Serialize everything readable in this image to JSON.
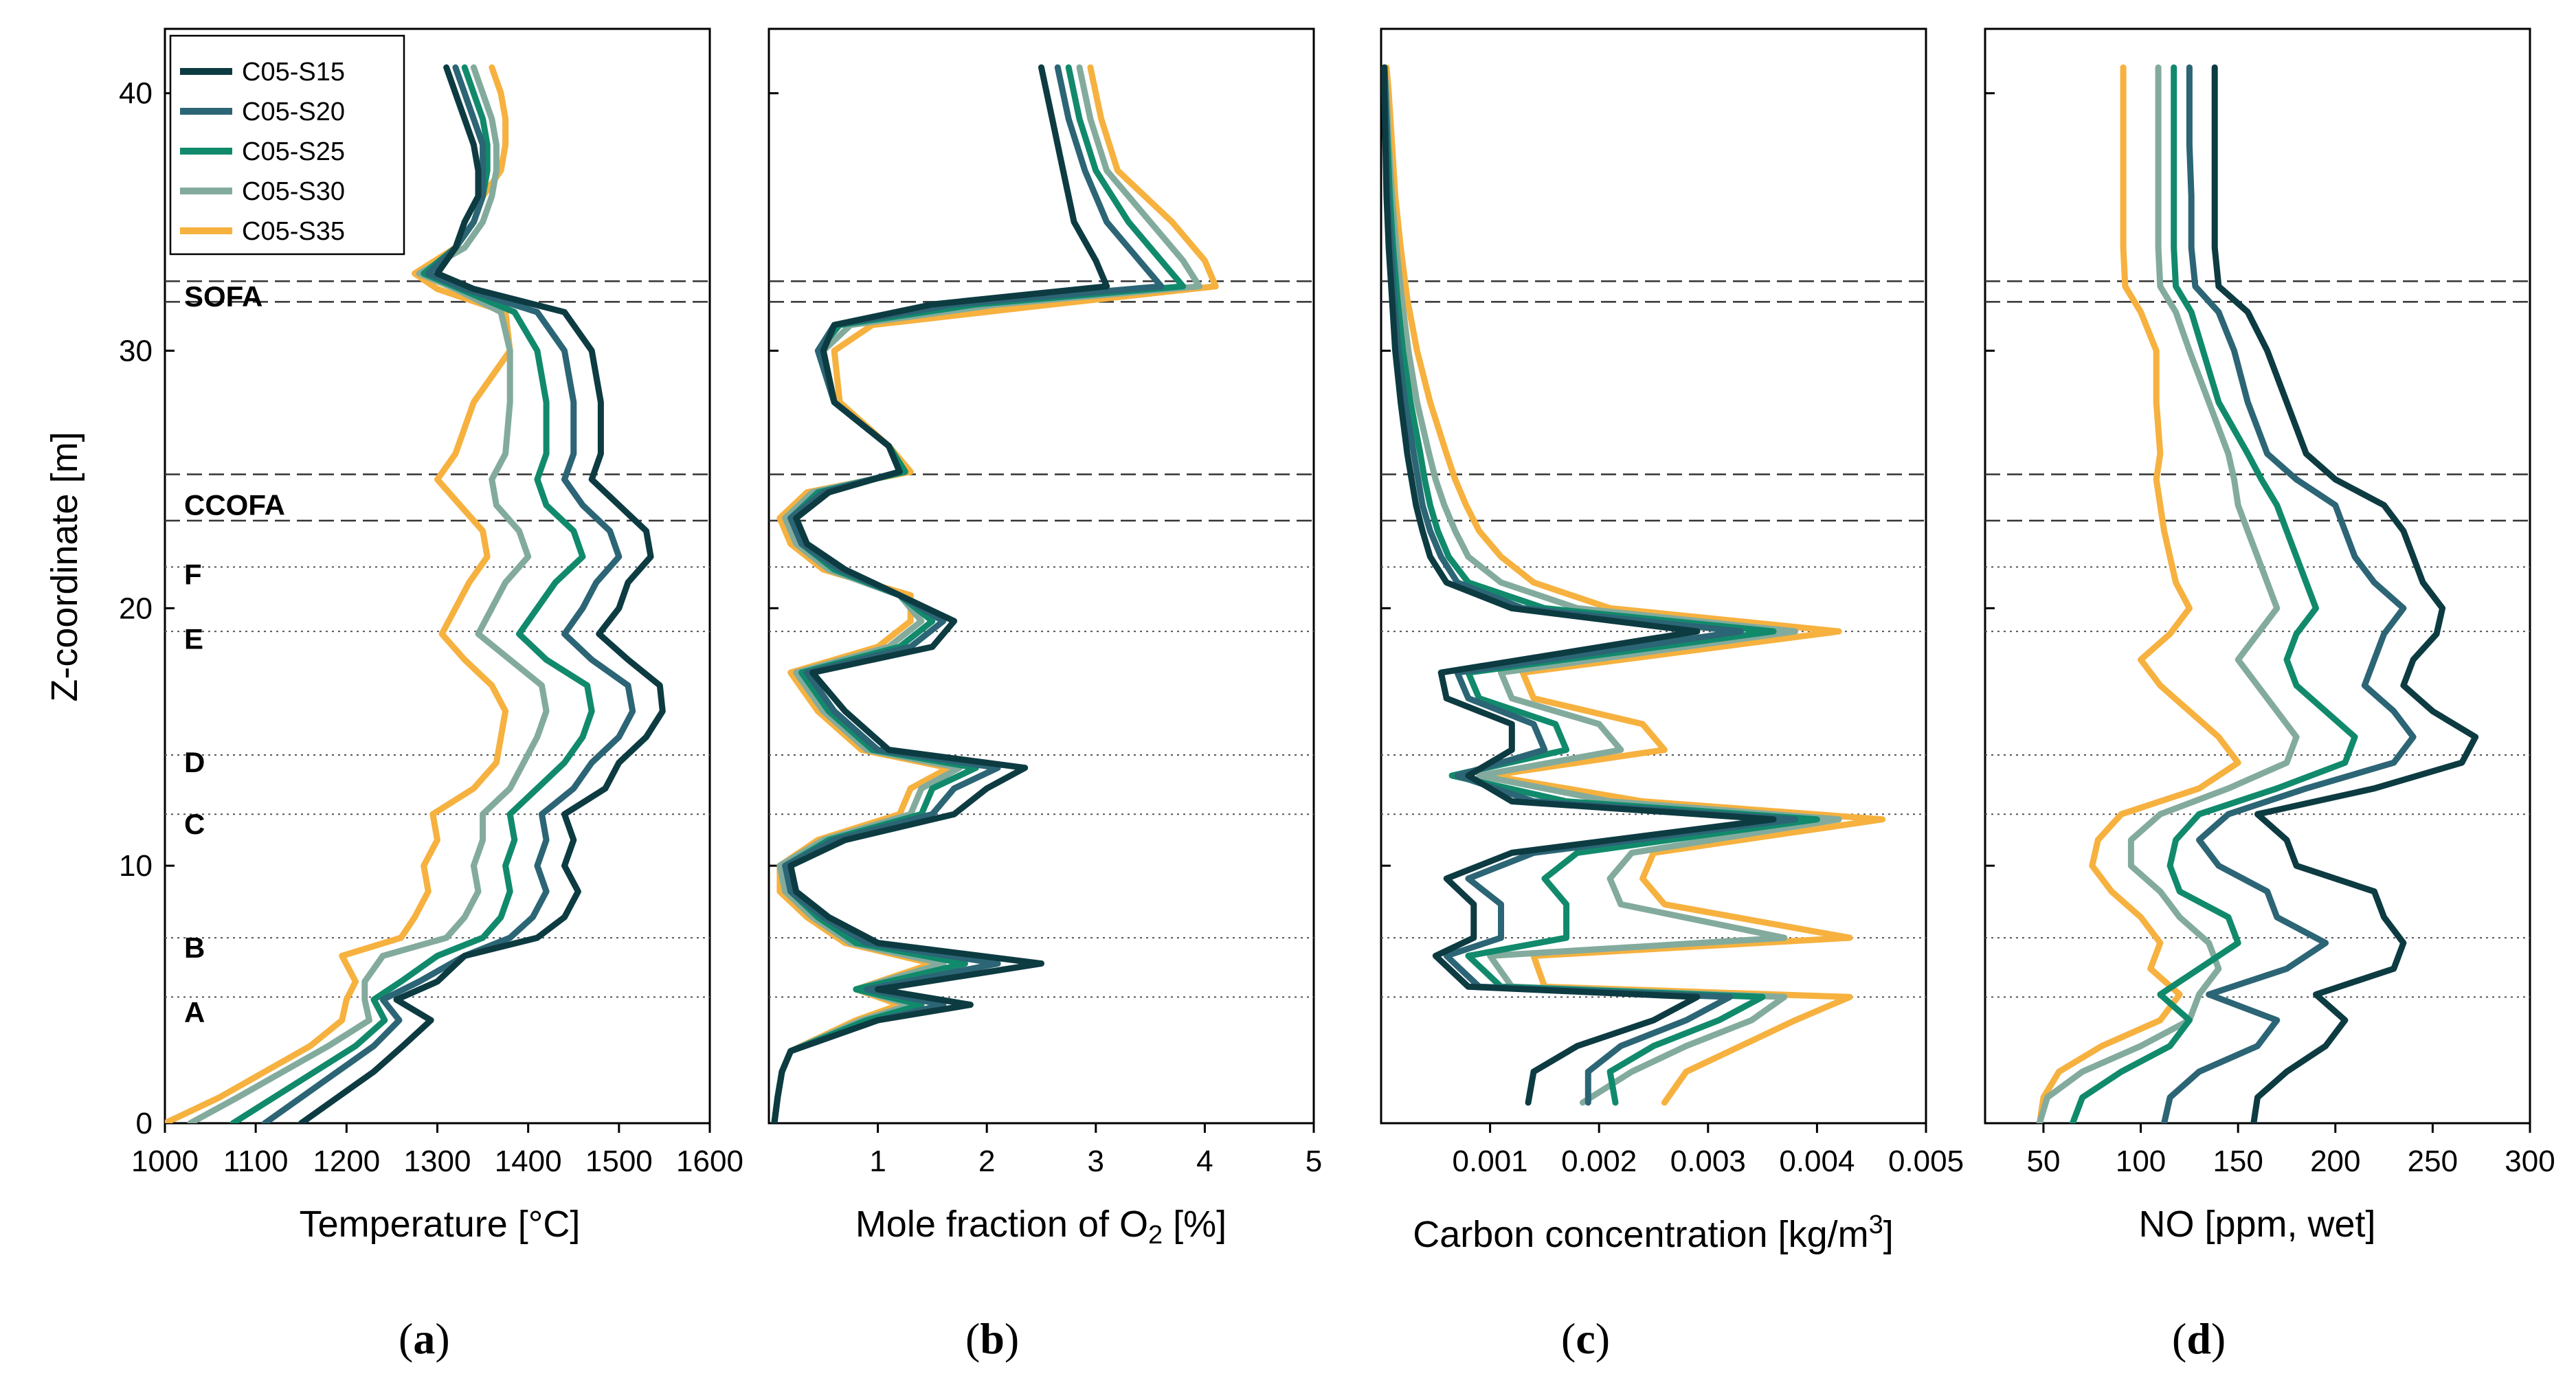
{
  "y_axis": {
    "label": "Z-coordinate [m]",
    "ticks": [
      0,
      10,
      20,
      30,
      40
    ],
    "range": [
      0,
      42.5
    ]
  },
  "region_lines": {
    "dashed": [
      32.7,
      31.9,
      25.2,
      23.4
    ],
    "dotted": [
      21.6,
      19.1,
      14.3,
      12.0,
      7.2,
      4.9
    ]
  },
  "region_labels": [
    {
      "text": "SOFA",
      "z": 32.1
    },
    {
      "text": "CCOFA",
      "z": 24.0
    },
    {
      "text": "F",
      "z": 21.3
    },
    {
      "text": "E",
      "z": 18.8
    },
    {
      "text": "D",
      "z": 14.0
    },
    {
      "text": "C",
      "z": 11.6
    },
    {
      "text": "B",
      "z": 6.8
    },
    {
      "text": "A",
      "z": 4.3
    }
  ],
  "legend": [
    "C05-S15",
    "C05-S20",
    "C05-S25",
    "C05-S30",
    "C05-S35"
  ],
  "series_colors": [
    "#0d3b42",
    "#2c6575",
    "#118a6c",
    "#83ab9d",
    "#f6b13f"
  ],
  "panel_labels": [
    "a",
    "b",
    "c",
    "d"
  ],
  "chart_data": [
    {
      "type": "line",
      "title": "",
      "xlabel": "Temperature [°C]",
      "ylabel": "Z-coordinate [m]",
      "xlim": [
        1000,
        1600
      ],
      "ylim": [
        0,
        42.5
      ],
      "x_ticks": [
        1000,
        1100,
        1200,
        1300,
        1400,
        1500,
        1600
      ],
      "x_tick_labels": [
        "1000",
        "1100",
        "1200",
        "1300",
        "1400",
        "1500",
        "1600"
      ],
      "z": [
        0,
        1,
        2,
        3,
        4,
        4.8,
        5.5,
        6.5,
        7.2,
        8,
        9,
        10,
        11,
        12,
        13,
        14,
        15,
        16,
        17,
        18,
        19,
        20,
        21,
        22,
        23,
        24,
        25,
        26,
        28,
        30,
        31.5,
        32.4,
        33,
        34,
        35,
        36,
        37,
        38,
        39,
        40,
        41
      ],
      "series": [
        {
          "name": "C05-S15",
          "values": [
            1150,
            1190,
            1230,
            1262,
            1293,
            1255,
            1300,
            1330,
            1410,
            1440,
            1455,
            1440,
            1450,
            1440,
            1485,
            1500,
            1530,
            1548,
            1545,
            1510,
            1478,
            1500,
            1510,
            1535,
            1530,
            1500,
            1470,
            1480,
            1480,
            1470,
            1440,
            1340,
            1300,
            1320,
            1330,
            1345,
            1345,
            1340,
            1330,
            1320,
            1310
          ]
        },
        {
          "name": "C05-S20",
          "values": [
            1110,
            1150,
            1190,
            1230,
            1258,
            1240,
            1280,
            1330,
            1380,
            1405,
            1420,
            1410,
            1420,
            1415,
            1450,
            1470,
            1500,
            1515,
            1510,
            1470,
            1440,
            1460,
            1475,
            1500,
            1490,
            1460,
            1440,
            1450,
            1450,
            1440,
            1410,
            1330,
            1290,
            1320,
            1340,
            1350,
            1350,
            1350,
            1340,
            1330,
            1320
          ]
        },
        {
          "name": "C05-S25",
          "values": [
            1075,
            1120,
            1165,
            1210,
            1242,
            1230,
            1260,
            1300,
            1350,
            1370,
            1380,
            1375,
            1385,
            1380,
            1410,
            1440,
            1460,
            1470,
            1465,
            1420,
            1390,
            1410,
            1430,
            1460,
            1450,
            1420,
            1410,
            1420,
            1420,
            1410,
            1385,
            1325,
            1285,
            1320,
            1340,
            1350,
            1355,
            1355,
            1350,
            1340,
            1330
          ]
        },
        {
          "name": "C05-S30",
          "values": [
            1028,
            1080,
            1130,
            1180,
            1225,
            1220,
            1220,
            1240,
            1310,
            1330,
            1345,
            1340,
            1350,
            1350,
            1380,
            1395,
            1410,
            1420,
            1415,
            1380,
            1345,
            1360,
            1375,
            1400,
            1390,
            1365,
            1360,
            1375,
            1380,
            1380,
            1370,
            1320,
            1280,
            1330,
            1350,
            1360,
            1365,
            1365,
            1360,
            1350,
            1340
          ]
        },
        {
          "name": "C05-S35",
          "values": [
            1000,
            1060,
            1110,
            1160,
            1195,
            1200,
            1210,
            1195,
            1260,
            1275,
            1290,
            1285,
            1300,
            1295,
            1340,
            1365,
            1370,
            1375,
            1360,
            1330,
            1305,
            1320,
            1335,
            1355,
            1350,
            1325,
            1300,
            1320,
            1340,
            1380,
            1375,
            1300,
            1275,
            1320,
            1340,
            1350,
            1370,
            1375,
            1375,
            1370,
            1360
          ]
        }
      ]
    },
    {
      "type": "line",
      "title": "",
      "xlabel": "Mole fraction of O2 [%]",
      "ylabel": "",
      "xlim": [
        0,
        5
      ],
      "ylim": [
        0,
        42.5
      ],
      "x_ticks": [
        1,
        2,
        3,
        4,
        5
      ],
      "x_tick_labels": [
        "1",
        "2",
        "3",
        "4",
        "5"
      ],
      "z": [
        0,
        1,
        2,
        2.8,
        4,
        4.6,
        5.2,
        6.2,
        7,
        8,
        9,
        10,
        11,
        12,
        13,
        13.8,
        14.5,
        16,
        17.5,
        18.5,
        19.5,
        20.5,
        21.5,
        22.5,
        23.5,
        24.5,
        25.3,
        26.3,
        28,
        30,
        31,
        31.8,
        32.5,
        33.5,
        35,
        37,
        39,
        41
      ],
      "series": [
        {
          "name": "C05-S15",
          "values": [
            0.05,
            0.08,
            0.12,
            0.2,
            1.0,
            1.85,
            1.0,
            2.5,
            1.0,
            0.55,
            0.25,
            0.2,
            0.7,
            1.7,
            2.0,
            2.35,
            1.1,
            0.7,
            0.4,
            1.5,
            1.7,
            1.2,
            0.7,
            0.35,
            0.25,
            0.55,
            1.2,
            1.1,
            0.6,
            0.5,
            0.6,
            1.5,
            3.1,
            3.0,
            2.8,
            2.7,
            2.6,
            2.5
          ]
        },
        {
          "name": "C05-S20",
          "values": [
            0.05,
            0.08,
            0.12,
            0.2,
            1.0,
            1.6,
            0.9,
            2.1,
            0.9,
            0.5,
            0.2,
            0.15,
            0.6,
            1.5,
            1.7,
            2.1,
            1.0,
            0.6,
            0.35,
            1.3,
            1.6,
            1.2,
            0.65,
            0.3,
            0.2,
            0.5,
            1.2,
            1.1,
            0.6,
            0.45,
            0.6,
            1.7,
            3.6,
            3.4,
            3.1,
            2.9,
            2.75,
            2.65
          ]
        },
        {
          "name": "C05-S25",
          "values": [
            0.05,
            0.08,
            0.12,
            0.2,
            0.9,
            1.4,
            0.8,
            1.8,
            0.8,
            0.45,
            0.2,
            0.15,
            0.55,
            1.4,
            1.5,
            1.9,
            0.95,
            0.55,
            0.3,
            1.2,
            1.5,
            1.2,
            0.6,
            0.3,
            0.2,
            0.45,
            1.25,
            1.1,
            0.6,
            0.45,
            0.65,
            1.9,
            3.8,
            3.6,
            3.3,
            3.0,
            2.85,
            2.75
          ]
        },
        {
          "name": "C05-S30",
          "values": [
            0.05,
            0.08,
            0.12,
            0.2,
            0.85,
            1.3,
            0.8,
            1.6,
            0.75,
            0.4,
            0.15,
            0.1,
            0.5,
            1.3,
            1.4,
            1.75,
            0.9,
            0.5,
            0.25,
            1.1,
            1.4,
            1.2,
            0.55,
            0.25,
            0.15,
            0.4,
            1.25,
            1.1,
            0.6,
            0.5,
            0.75,
            2.1,
            3.95,
            3.8,
            3.5,
            3.1,
            2.95,
            2.85
          ]
        },
        {
          "name": "C05-S35",
          "values": [
            0.05,
            0.08,
            0.12,
            0.2,
            0.8,
            1.2,
            0.8,
            1.5,
            0.7,
            0.35,
            0.1,
            0.1,
            0.45,
            1.2,
            1.3,
            1.65,
            0.85,
            0.45,
            0.2,
            1.0,
            1.3,
            1.3,
            0.5,
            0.2,
            0.1,
            0.35,
            1.3,
            1.1,
            0.65,
            0.6,
            0.95,
            2.6,
            4.1,
            4.0,
            3.7,
            3.2,
            3.05,
            2.95
          ]
        }
      ]
    },
    {
      "type": "line",
      "title": "",
      "xlabel": "Carbon concentration [kg/m3]",
      "ylabel": "",
      "xlim": [
        0,
        0.005
      ],
      "ylim": [
        0,
        42.5
      ],
      "x_ticks": [
        0.001,
        0.002,
        0.003,
        0.004,
        0.005
      ],
      "x_tick_labels": [
        "0.001",
        "0.002",
        "0.003",
        "0.004",
        "0.005"
      ],
      "z": [
        0.8,
        2,
        3,
        4,
        4.9,
        5.3,
        6.5,
        7.2,
        8.5,
        9.5,
        10.5,
        11.8,
        12.5,
        13.5,
        14.5,
        15.5,
        16.5,
        17.5,
        19.1,
        20,
        21,
        22,
        23,
        24,
        25,
        26,
        28,
        30,
        32,
        34,
        36,
        38,
        40,
        41
      ],
      "series": [
        {
          "name": "C05-S15",
          "values": [
            0.00135,
            0.0014,
            0.0018,
            0.0025,
            0.0029,
            0.0008,
            0.0005,
            0.00085,
            0.00085,
            0.0006,
            0.0012,
            0.0036,
            0.0012,
            0.0008,
            0.0012,
            0.0012,
            0.0006,
            0.00055,
            0.0029,
            0.0012,
            0.0006,
            0.00045,
            0.00038,
            0.00032,
            0.00028,
            0.00024,
            0.00018,
            0.00013,
            0.0001,
            7e-05,
            5e-05,
            4e-05,
            3e-05,
            3e-05
          ]
        },
        {
          "name": "C05-S20",
          "values": [
            0.0019,
            0.0019,
            0.0022,
            0.0028,
            0.0032,
            0.0009,
            0.0006,
            0.0011,
            0.0011,
            0.0008,
            0.0014,
            0.0038,
            0.0014,
            0.0007,
            0.0015,
            0.0014,
            0.0008,
            0.0007,
            0.0033,
            0.0013,
            0.0007,
            0.00055,
            0.00045,
            0.00038,
            0.00034,
            0.0003,
            0.00022,
            0.00016,
            0.00012,
            9e-05,
            6e-05,
            5e-05,
            4e-05,
            3e-05
          ]
        },
        {
          "name": "C05-S25",
          "values": [
            0.00215,
            0.0021,
            0.0025,
            0.0031,
            0.0035,
            0.0011,
            0.0008,
            0.0017,
            0.0017,
            0.0015,
            0.0018,
            0.004,
            0.0017,
            0.00065,
            0.0017,
            0.0016,
            0.0009,
            0.0008,
            0.0036,
            0.0015,
            0.0008,
            0.00062,
            0.00052,
            0.00045,
            0.0004,
            0.00036,
            0.00027,
            0.0002,
            0.00015,
            0.00011,
            8e-05,
            6e-05,
            4e-05,
            3e-05
          ]
        },
        {
          "name": "C05-S30",
          "values": [
            0.00185,
            0.0023,
            0.0028,
            0.0034,
            0.0037,
            0.0012,
            0.001,
            0.0037,
            0.0022,
            0.0021,
            0.0023,
            0.0042,
            0.0021,
            0.0009,
            0.0022,
            0.002,
            0.0012,
            0.0011,
            0.0038,
            0.0018,
            0.0011,
            0.0008,
            0.00068,
            0.00058,
            0.0005,
            0.00044,
            0.00033,
            0.00025,
            0.00019,
            0.00014,
            0.0001,
            7e-05,
            5e-05,
            3e-05
          ]
        },
        {
          "name": "C05-S35",
          "values": [
            0.0026,
            0.0028,
            0.0033,
            0.0038,
            0.0043,
            0.0015,
            0.0014,
            0.0043,
            0.0026,
            0.0024,
            0.0025,
            0.0046,
            0.0024,
            0.001,
            0.0026,
            0.0024,
            0.0014,
            0.0013,
            0.0042,
            0.0021,
            0.0014,
            0.0011,
            0.0009,
            0.00078,
            0.00068,
            0.0006,
            0.00045,
            0.00033,
            0.00024,
            0.00018,
            0.00013,
            0.0001,
            7e-05,
            5e-05
          ]
        }
      ]
    },
    {
      "type": "line",
      "title": "",
      "xlabel": "NO [ppm, wet]",
      "ylabel": "",
      "xlim": [
        20,
        300
      ],
      "ylim": [
        0,
        42.5
      ],
      "x_ticks": [
        50,
        100,
        150,
        200,
        250,
        300
      ],
      "x_tick_labels": [
        "50",
        "100",
        "150",
        "200",
        "250",
        "300"
      ],
      "z": [
        0,
        1,
        2,
        3,
        4,
        5,
        6,
        7,
        8,
        9,
        10,
        11,
        12,
        13,
        14,
        15,
        16,
        17,
        18,
        19,
        20,
        21,
        22,
        23,
        24,
        25,
        26,
        28,
        30,
        31.5,
        32.5,
        34,
        36,
        38,
        40,
        41
      ],
      "series": [
        {
          "name": "C05-S15",
          "values": [
            158,
            160,
            175,
            195,
            205,
            190,
            230,
            235,
            225,
            220,
            180,
            175,
            160,
            220,
            265,
            272,
            250,
            235,
            240,
            252,
            255,
            245,
            240,
            235,
            225,
            200,
            185,
            175,
            165,
            155,
            140,
            138,
            138,
            138,
            138,
            138
          ]
        },
        {
          "name": "C05-S20",
          "values": [
            112,
            115,
            130,
            160,
            170,
            135,
            175,
            195,
            170,
            165,
            140,
            130,
            145,
            185,
            230,
            240,
            230,
            215,
            220,
            225,
            235,
            220,
            210,
            205,
            200,
            180,
            165,
            155,
            148,
            140,
            128,
            126,
            126,
            125,
            125,
            125
          ]
        },
        {
          "name": "C05-S25",
          "values": [
            65,
            70,
            90,
            115,
            125,
            110,
            130,
            150,
            145,
            120,
            115,
            118,
            130,
            170,
            205,
            210,
            195,
            180,
            175,
            180,
            190,
            185,
            180,
            175,
            170,
            162,
            155,
            140,
            132,
            126,
            118,
            117,
            117,
            117,
            117,
            117
          ]
        },
        {
          "name": "C05-S30",
          "values": [
            48,
            52,
            70,
            100,
            125,
            130,
            140,
            135,
            120,
            110,
            95,
            95,
            110,
            145,
            175,
            180,
            170,
            160,
            150,
            160,
            170,
            165,
            160,
            155,
            150,
            148,
            145,
            135,
            125,
            118,
            110,
            109,
            109,
            109,
            109,
            109
          ]
        },
        {
          "name": "C05-S35",
          "values": [
            48,
            50,
            58,
            80,
            110,
            120,
            105,
            110,
            100,
            85,
            75,
            78,
            90,
            130,
            150,
            140,
            125,
            110,
            100,
            115,
            125,
            118,
            115,
            112,
            110,
            108,
            110,
            108,
            108,
            100,
            92,
            91,
            91,
            91,
            91,
            91
          ]
        }
      ]
    }
  ]
}
